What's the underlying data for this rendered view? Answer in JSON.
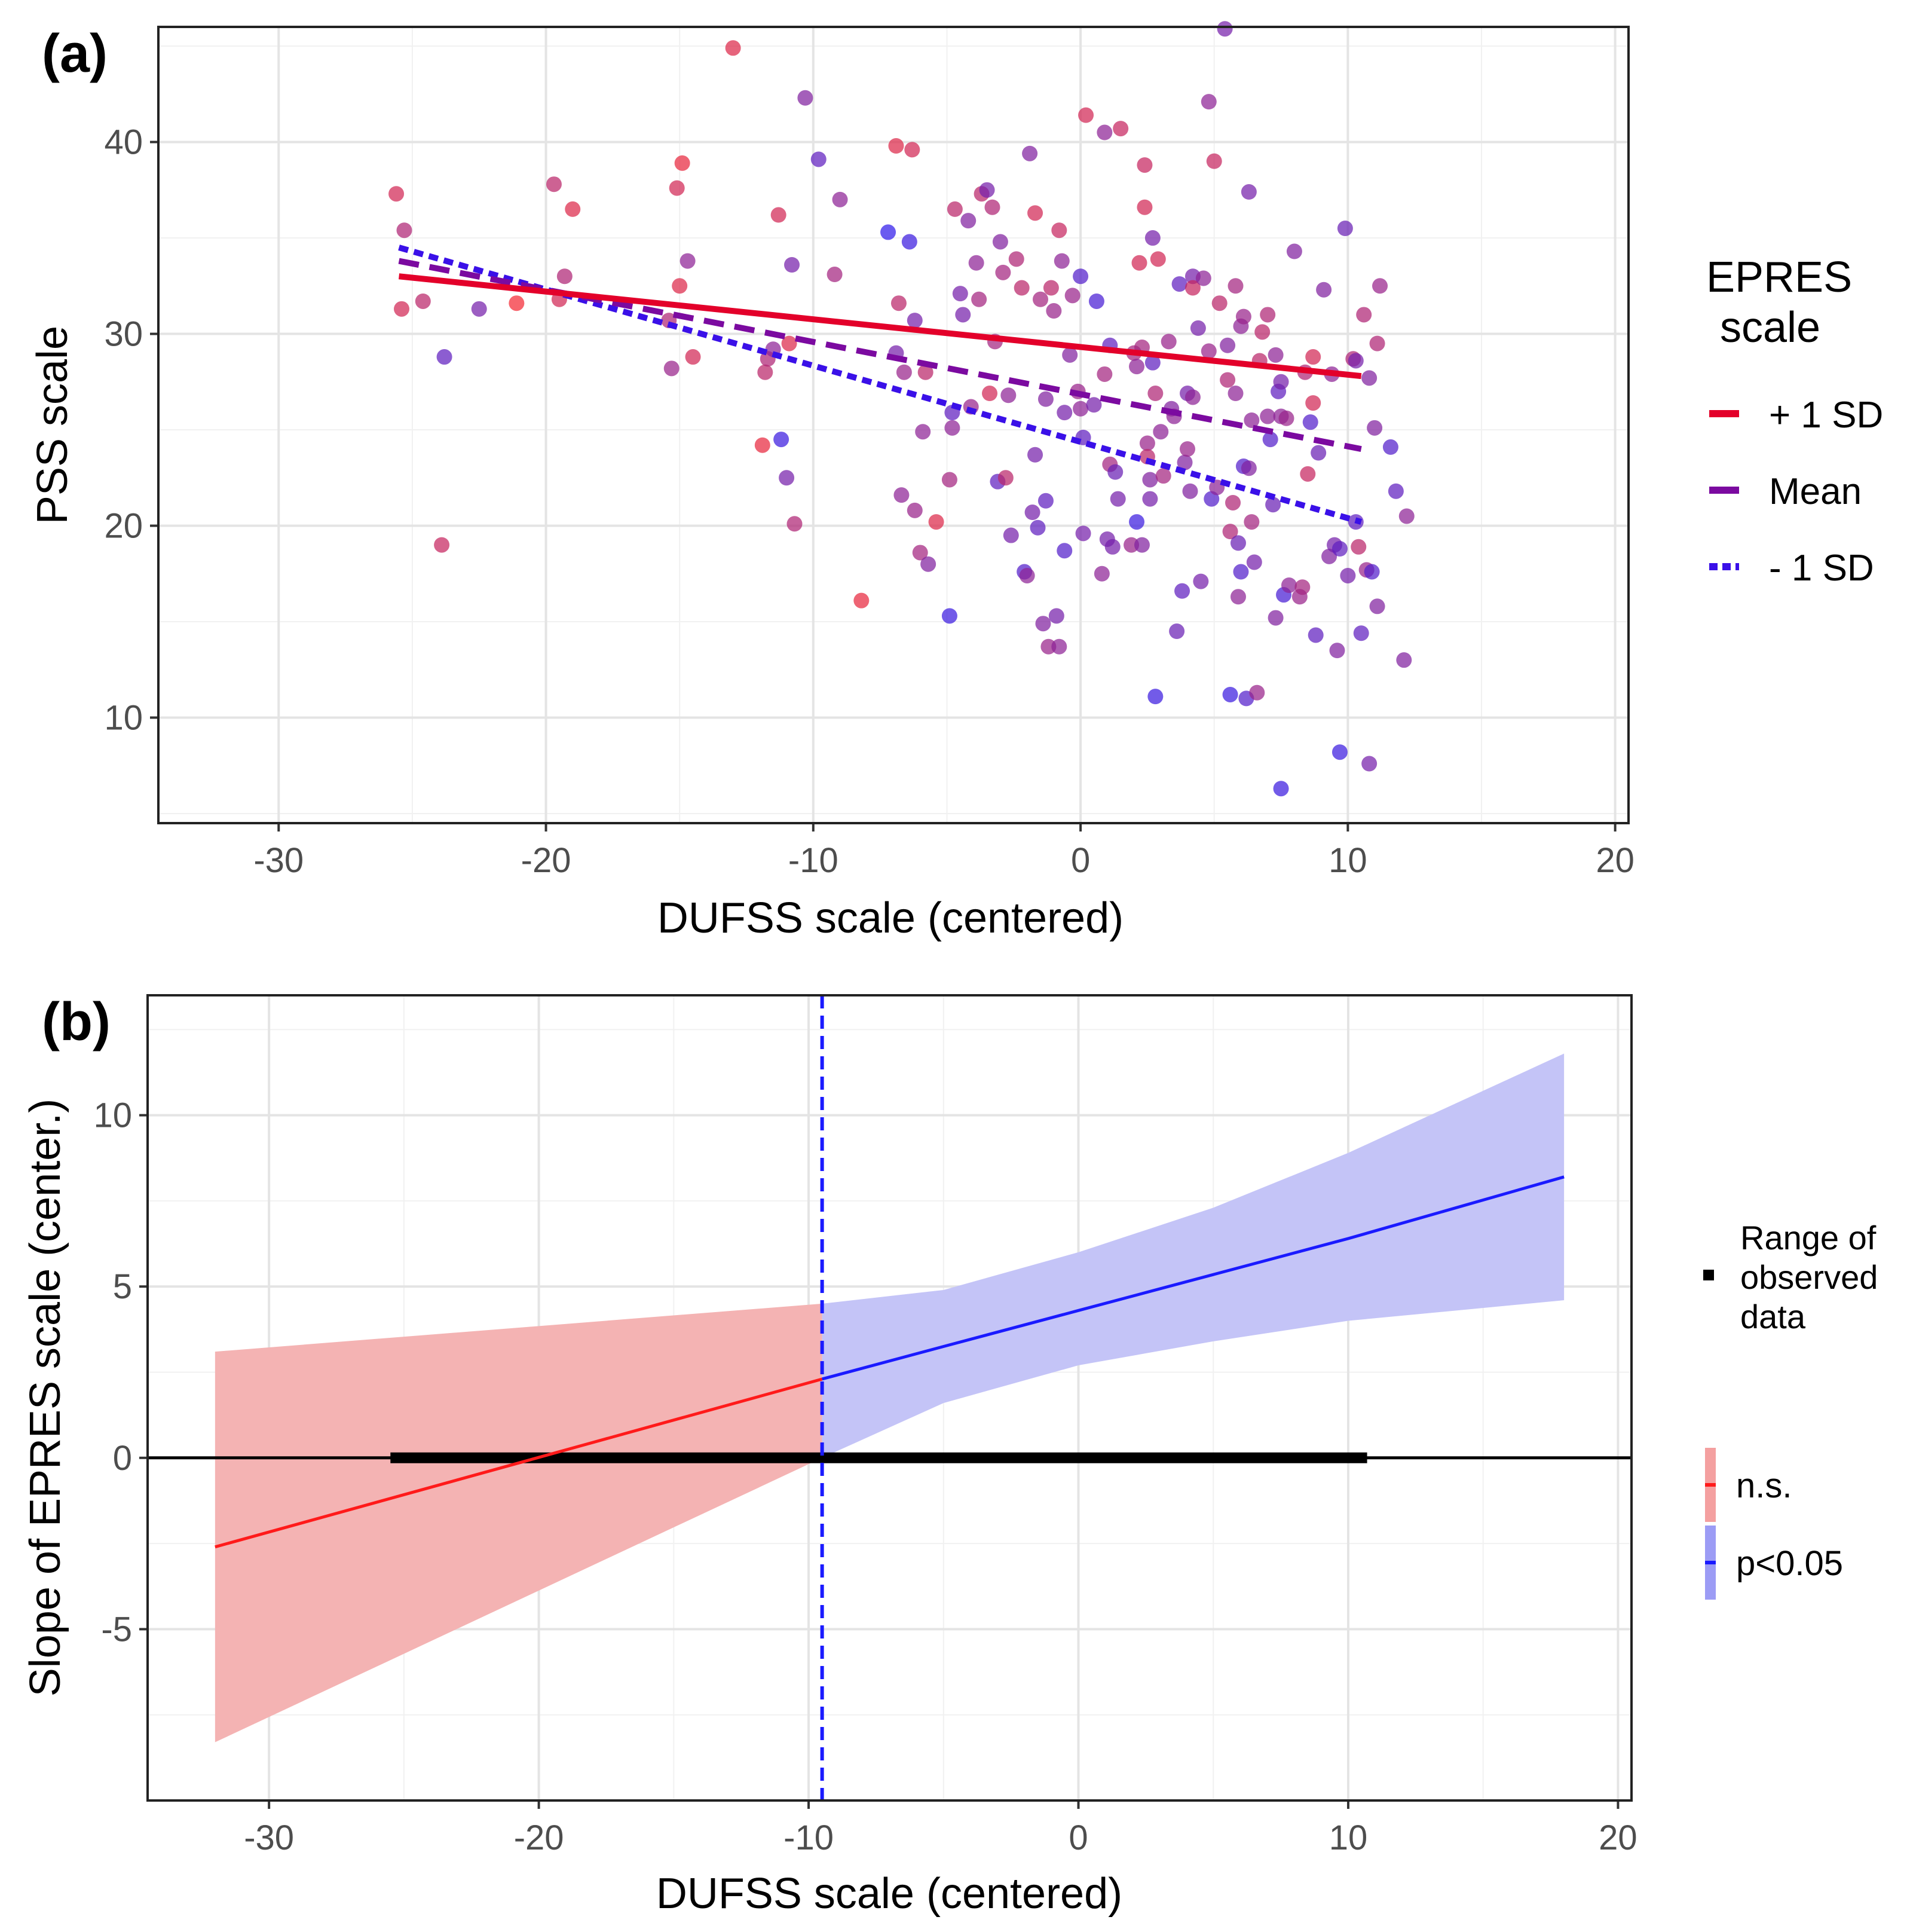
{
  "chart_data": [
    {
      "panel_label": "(a)",
      "type": "scatter",
      "xlabel": "DUFSS scale (centered)",
      "ylabel": "PSS scale",
      "xlim": [
        -34.5,
        20.5
      ],
      "ylim": [
        4.5,
        46.0
      ],
      "xticks": [
        -30,
        -20,
        -10,
        0,
        10,
        20
      ],
      "yticks": [
        10,
        20,
        30,
        40
      ],
      "grid": true,
      "legend": {
        "title_lines": [
          "EPRES",
          "scale"
        ],
        "position": "right",
        "entries": [
          {
            "label": "+ 1 SD",
            "color": "#e3002a",
            "dash": "solid"
          },
          {
            "label": "Mean",
            "color": "#7b0aa0",
            "dash": "long-dash"
          },
          {
            "label": "- 1 SD",
            "color": "#3a10e8",
            "dash": "short-dash"
          }
        ]
      },
      "lines": [
        {
          "name": "+ 1 SD",
          "color": "#e3002a",
          "dash": "solid",
          "x": [
            -25.5,
            10.5
          ],
          "y": [
            33.0,
            27.8
          ]
        },
        {
          "name": "Mean",
          "color": "#7b0aa0",
          "dash": "long-dash",
          "x": [
            -25.5,
            10.5
          ],
          "y": [
            33.8,
            24.0
          ]
        },
        {
          "name": "- 1 SD",
          "color": "#3a10e8",
          "dash": "short-dash",
          "x": [
            -25.5,
            10.5
          ],
          "y": [
            34.5,
            20.2
          ]
        }
      ],
      "points": [
        [
          -25.6,
          37.3,
          0.2
        ],
        [
          -25.3,
          35.4,
          0.35
        ],
        [
          -25.4,
          31.3,
          0.2
        ],
        [
          -24.6,
          31.7,
          0.3
        ],
        [
          -23.9,
          19.0,
          0.25
        ],
        [
          -23.8,
          28.8,
          0.7
        ],
        [
          -22.5,
          31.3,
          0.6
        ],
        [
          -21.1,
          31.6,
          0.05
        ],
        [
          -19.7,
          37.8,
          0.3
        ],
        [
          -19.0,
          36.5,
          0.15
        ],
        [
          -19.5,
          31.8,
          0.2
        ],
        [
          -19.3,
          33.0,
          0.35
        ],
        [
          -15.4,
          30.7,
          0.35
        ],
        [
          -15.3,
          28.2,
          0.45
        ],
        [
          -15.1,
          37.6,
          0.2
        ],
        [
          -15.0,
          32.5,
          0.15
        ],
        [
          -14.9,
          38.9,
          0.1
        ],
        [
          -14.7,
          33.8,
          0.5
        ],
        [
          -14.5,
          28.8,
          0.2
        ],
        [
          -13.0,
          44.9,
          0.15
        ],
        [
          -11.9,
          24.2,
          0.1
        ],
        [
          -11.8,
          28.0,
          0.3
        ],
        [
          -11.7,
          28.7,
          0.35
        ],
        [
          -11.5,
          29.2,
          0.5
        ],
        [
          -11.3,
          36.2,
          0.2
        ],
        [
          -11.2,
          24.5,
          0.85
        ],
        [
          -11.0,
          22.5,
          0.6
        ],
        [
          -10.9,
          29.5,
          0.15
        ],
        [
          -10.8,
          33.6,
          0.6
        ],
        [
          -10.7,
          20.1,
          0.35
        ],
        [
          -10.3,
          42.3,
          0.55
        ],
        [
          -9.8,
          39.1,
          0.7
        ],
        [
          -9.2,
          33.1,
          0.4
        ],
        [
          -9.0,
          37.0,
          0.5
        ],
        [
          -8.2,
          16.1,
          0.1
        ],
        [
          -7.2,
          35.3,
          0.9
        ],
        [
          -6.9,
          39.8,
          0.15
        ],
        [
          -6.9,
          29.0,
          0.6
        ],
        [
          -6.8,
          31.6,
          0.3
        ],
        [
          -6.7,
          21.6,
          0.5
        ],
        [
          -6.6,
          28.0,
          0.45
        ],
        [
          -6.4,
          34.8,
          0.85
        ],
        [
          -6.3,
          39.6,
          0.2
        ],
        [
          -6.2,
          30.7,
          0.6
        ],
        [
          -6.2,
          20.8,
          0.45
        ],
        [
          -5.9,
          24.9,
          0.5
        ],
        [
          -6.0,
          18.6,
          0.4
        ],
        [
          -5.8,
          28.0,
          0.3
        ],
        [
          -5.7,
          18.0,
          0.55
        ],
        [
          -5.4,
          20.2,
          0.15
        ],
        [
          -4.9,
          15.3,
          0.85
        ],
        [
          -4.9,
          22.4,
          0.4
        ],
        [
          -4.8,
          25.9,
          0.7
        ],
        [
          -4.8,
          25.1,
          0.5
        ],
        [
          -4.7,
          36.5,
          0.3
        ],
        [
          -4.5,
          32.1,
          0.6
        ],
        [
          -4.4,
          31.0,
          0.6
        ],
        [
          -4.2,
          35.9,
          0.55
        ],
        [
          -4.1,
          26.2,
          0.45
        ],
        [
          -3.9,
          33.7,
          0.5
        ],
        [
          -3.8,
          31.8,
          0.4
        ],
        [
          -3.7,
          37.3,
          0.3
        ],
        [
          -3.5,
          37.5,
          0.6
        ],
        [
          -3.4,
          26.9,
          0.2
        ],
        [
          -3.3,
          36.6,
          0.35
        ],
        [
          -3.2,
          29.6,
          0.4
        ],
        [
          -3.1,
          22.3,
          0.7
        ],
        [
          -3.0,
          34.8,
          0.55
        ],
        [
          -2.9,
          33.2,
          0.4
        ],
        [
          -2.8,
          22.5,
          0.3
        ],
        [
          -2.7,
          26.8,
          0.5
        ],
        [
          -2.6,
          19.5,
          0.6
        ],
        [
          -2.4,
          33.9,
          0.35
        ],
        [
          -2.2,
          32.4,
          0.3
        ],
        [
          -2.1,
          17.6,
          0.75
        ],
        [
          -2.0,
          17.4,
          0.5
        ],
        [
          -1.9,
          39.4,
          0.55
        ],
        [
          -1.8,
          20.7,
          0.6
        ],
        [
          -1.7,
          36.3,
          0.2
        ],
        [
          -1.7,
          23.7,
          0.6
        ],
        [
          -1.6,
          19.9,
          0.7
        ],
        [
          -1.5,
          31.8,
          0.4
        ],
        [
          -1.4,
          14.9,
          0.55
        ],
        [
          -1.3,
          26.6,
          0.55
        ],
        [
          -1.3,
          21.3,
          0.7
        ],
        [
          -1.2,
          13.7,
          0.45
        ],
        [
          -1.1,
          32.4,
          0.3
        ],
        [
          -1.0,
          31.2,
          0.45
        ],
        [
          -0.9,
          15.3,
          0.6
        ],
        [
          -0.8,
          35.4,
          0.25
        ],
        [
          -0.8,
          13.7,
          0.5
        ],
        [
          -0.7,
          33.8,
          0.5
        ],
        [
          -0.6,
          18.7,
          0.75
        ],
        [
          -0.6,
          25.9,
          0.6
        ],
        [
          -0.4,
          28.9,
          0.55
        ],
        [
          -0.3,
          32.0,
          0.45
        ],
        [
          -0.1,
          27.0,
          0.45
        ],
        [
          0.0,
          26.1,
          0.5
        ],
        [
          0.0,
          33.0,
          0.75
        ],
        [
          0.1,
          19.6,
          0.6
        ],
        [
          0.1,
          24.6,
          0.7
        ],
        [
          0.2,
          41.4,
          0.2
        ],
        [
          0.5,
          26.3,
          0.6
        ],
        [
          0.6,
          31.7,
          0.8
        ],
        [
          0.8,
          17.5,
          0.5
        ],
        [
          0.9,
          27.9,
          0.4
        ],
        [
          0.9,
          40.5,
          0.5
        ],
        [
          1.0,
          19.3,
          0.6
        ],
        [
          1.1,
          29.4,
          0.7
        ],
        [
          1.1,
          23.2,
          0.4
        ],
        [
          1.2,
          18.9,
          0.6
        ],
        [
          1.3,
          22.8,
          0.65
        ],
        [
          1.4,
          21.4,
          0.6
        ],
        [
          1.5,
          40.7,
          0.25
        ],
        [
          1.9,
          19.0,
          0.45
        ],
        [
          2.0,
          29.0,
          0.4
        ],
        [
          2.1,
          28.3,
          0.5
        ],
        [
          2.1,
          20.2,
          0.85
        ],
        [
          2.2,
          33.7,
          0.2
        ],
        [
          2.3,
          19.0,
          0.55
        ],
        [
          2.3,
          29.3,
          0.4
        ],
        [
          2.4,
          38.8,
          0.25
        ],
        [
          2.4,
          36.6,
          0.2
        ],
        [
          2.5,
          24.3,
          0.45
        ],
        [
          2.5,
          23.6,
          0.3
        ],
        [
          2.6,
          22.4,
          0.55
        ],
        [
          2.6,
          21.4,
          0.6
        ],
        [
          2.7,
          35.0,
          0.6
        ],
        [
          2.7,
          28.5,
          0.7
        ],
        [
          2.8,
          26.9,
          0.35
        ],
        [
          2.8,
          11.1,
          0.85
        ],
        [
          2.9,
          33.9,
          0.2
        ],
        [
          3.0,
          24.9,
          0.5
        ],
        [
          3.1,
          22.6,
          0.4
        ],
        [
          3.3,
          29.6,
          0.45
        ],
        [
          3.4,
          26.1,
          0.55
        ],
        [
          3.5,
          25.7,
          0.5
        ],
        [
          3.6,
          14.5,
          0.65
        ],
        [
          3.7,
          32.6,
          0.7
        ],
        [
          3.8,
          16.6,
          0.7
        ],
        [
          3.9,
          23.3,
          0.55
        ],
        [
          4.0,
          24.0,
          0.45
        ],
        [
          4.0,
          26.9,
          0.6
        ],
        [
          4.1,
          21.8,
          0.55
        ],
        [
          4.2,
          33.0,
          0.6
        ],
        [
          4.2,
          32.4,
          0.25
        ],
        [
          4.2,
          26.7,
          0.5
        ],
        [
          4.4,
          30.3,
          0.6
        ],
        [
          4.5,
          17.1,
          0.6
        ],
        [
          4.6,
          32.9,
          0.5
        ],
        [
          4.8,
          42.1,
          0.5
        ],
        [
          4.8,
          29.1,
          0.45
        ],
        [
          4.9,
          21.4,
          0.75
        ],
        [
          5.0,
          39.0,
          0.25
        ],
        [
          5.1,
          22.0,
          0.5
        ],
        [
          5.2,
          31.6,
          0.3
        ],
        [
          5.4,
          45.9,
          0.6
        ],
        [
          5.5,
          27.6,
          0.35
        ],
        [
          5.5,
          29.4,
          0.55
        ],
        [
          5.6,
          19.7,
          0.35
        ],
        [
          5.6,
          11.2,
          0.85
        ],
        [
          5.7,
          21.2,
          0.35
        ],
        [
          5.8,
          32.5,
          0.4
        ],
        [
          5.8,
          26.9,
          0.5
        ],
        [
          5.9,
          19.1,
          0.65
        ],
        [
          5.9,
          16.3,
          0.5
        ],
        [
          6.0,
          17.6,
          0.75
        ],
        [
          6.1,
          23.1,
          0.75
        ],
        [
          6.0,
          30.4,
          0.5
        ],
        [
          6.1,
          30.9,
          0.45
        ],
        [
          6.2,
          11.0,
          0.75
        ],
        [
          6.3,
          37.4,
          0.6
        ],
        [
          6.3,
          23.0,
          0.55
        ],
        [
          6.4,
          25.5,
          0.5
        ],
        [
          6.4,
          20.2,
          0.4
        ],
        [
          6.5,
          18.1,
          0.6
        ],
        [
          6.6,
          11.3,
          0.45
        ],
        [
          6.7,
          28.6,
          0.3
        ],
        [
          6.8,
          30.1,
          0.3
        ],
        [
          7.0,
          25.7,
          0.5
        ],
        [
          7.0,
          31.0,
          0.35
        ],
        [
          7.1,
          24.5,
          0.75
        ],
        [
          7.2,
          21.1,
          0.65
        ],
        [
          7.3,
          15.2,
          0.55
        ],
        [
          7.3,
          28.9,
          0.5
        ],
        [
          7.4,
          27.0,
          0.7
        ],
        [
          7.5,
          25.7,
          0.5
        ],
        [
          7.5,
          6.3,
          0.85
        ],
        [
          7.5,
          27.5,
          0.6
        ],
        [
          7.6,
          16.4,
          0.8
        ],
        [
          7.7,
          25.6,
          0.45
        ],
        [
          7.8,
          16.9,
          0.5
        ],
        [
          8.0,
          34.3,
          0.55
        ],
        [
          8.2,
          16.3,
          0.45
        ],
        [
          8.3,
          16.8,
          0.4
        ],
        [
          8.4,
          28.0,
          0.35
        ],
        [
          8.5,
          22.7,
          0.25
        ],
        [
          8.6,
          25.4,
          0.75
        ],
        [
          8.7,
          28.8,
          0.2
        ],
        [
          8.7,
          26.4,
          0.2
        ],
        [
          8.8,
          14.3,
          0.7
        ],
        [
          8.9,
          23.8,
          0.65
        ],
        [
          9.1,
          32.3,
          0.55
        ],
        [
          9.3,
          18.4,
          0.55
        ],
        [
          9.4,
          27.9,
          0.5
        ],
        [
          9.5,
          19.0,
          0.6
        ],
        [
          9.6,
          13.5,
          0.55
        ],
        [
          9.7,
          18.8,
          0.7
        ],
        [
          9.7,
          8.2,
          0.85
        ],
        [
          9.9,
          35.5,
          0.65
        ],
        [
          10.0,
          17.4,
          0.6
        ],
        [
          10.2,
          28.7,
          0.35
        ],
        [
          10.3,
          20.2,
          0.7
        ],
        [
          10.3,
          28.6,
          0.6
        ],
        [
          10.4,
          18.9,
          0.3
        ],
        [
          10.5,
          14.4,
          0.7
        ],
        [
          10.6,
          31.0,
          0.35
        ],
        [
          10.7,
          17.7,
          0.45
        ],
        [
          10.8,
          27.7,
          0.55
        ],
        [
          10.8,
          7.6,
          0.6
        ],
        [
          10.9,
          17.6,
          0.75
        ],
        [
          11.0,
          25.1,
          0.55
        ],
        [
          11.1,
          29.5,
          0.35
        ],
        [
          11.1,
          15.8,
          0.55
        ],
        [
          11.2,
          32.5,
          0.45
        ],
        [
          11.6,
          24.1,
          0.75
        ],
        [
          11.8,
          21.8,
          0.7
        ],
        [
          12.1,
          13.0,
          0.55
        ],
        [
          12.2,
          20.5,
          0.5
        ]
      ]
    },
    {
      "panel_label": "(b)",
      "type": "line",
      "xlabel": "DUFSS scale (centered)",
      "ylabel": "Slope of EPRES scale (center.)",
      "xlim": [
        -34.5,
        20.5
      ],
      "ylim": [
        -10.0,
        13.5
      ],
      "xticks": [
        -30,
        -20,
        -10,
        0,
        10,
        20
      ],
      "yticks": [
        -5,
        0,
        5,
        10
      ],
      "grid": true,
      "johnson_neyman_x": -9.5,
      "zero_line": 0,
      "observed_range": [
        -25.5,
        10.7
      ],
      "series": [
        {
          "name": "n.s.",
          "color": "#ff1a1a",
          "band_color": "#f4b3b3",
          "x": [
            -32.0,
            -9.5
          ],
          "y": [
            -2.6,
            2.3
          ],
          "lower": [
            -8.3,
            0.0
          ],
          "upper": [
            3.1,
            4.5
          ]
        },
        {
          "name": "p<0.05",
          "color": "#1a1aff",
          "band_color": "#c4c4f7",
          "x": [
            -9.5,
            -5,
            0,
            5,
            10,
            18.0
          ],
          "y": [
            2.3,
            3.25,
            4.3,
            5.35,
            6.4,
            8.2
          ],
          "lower": [
            0.0,
            1.6,
            2.7,
            3.4,
            4.0,
            4.6
          ],
          "upper": [
            4.5,
            4.9,
            6.0,
            7.3,
            8.9,
            11.8
          ]
        }
      ],
      "legend": {
        "position": "right",
        "observed": "Range of\nobserved\ndata",
        "entries": [
          {
            "label": "n.s.",
            "color": "#ff1a1a",
            "band_color": "#f4a0a0"
          },
          {
            "label": "p<0.05",
            "color": "#1a1aff",
            "band_color": "#9c9cf5"
          }
        ]
      }
    }
  ]
}
